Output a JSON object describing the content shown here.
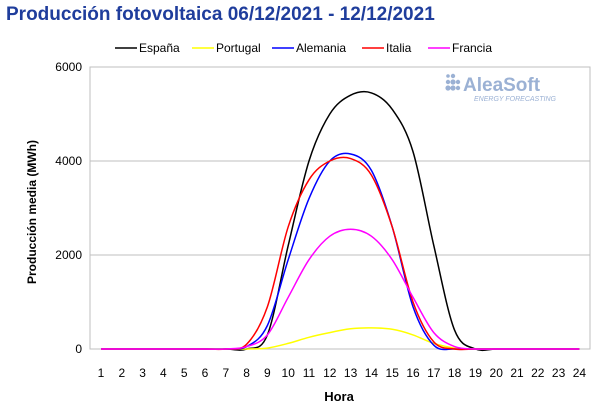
{
  "chart_data": {
    "type": "line",
    "title": "Producción fotovoltaica 06/12/2021 - 12/12/2021",
    "xlabel": "Hora",
    "ylabel": "Producción media (MWh)",
    "x": [
      1,
      2,
      3,
      4,
      5,
      6,
      7,
      8,
      9,
      10,
      11,
      12,
      13,
      14,
      15,
      16,
      17,
      18,
      19,
      20,
      21,
      22,
      23,
      24
    ],
    "xlim": [
      1,
      24
    ],
    "ylim": [
      0,
      6000
    ],
    "yticks": [
      "0",
      "2000",
      "4000",
      "6000"
    ],
    "grid": "horizontal",
    "legend_position": "top",
    "series": [
      {
        "name": "España",
        "color": "#000000",
        "values": [
          0,
          0,
          0,
          0,
          0,
          0,
          0,
          0,
          300,
          2200,
          4000,
          5000,
          5400,
          5450,
          5100,
          4200,
          2200,
          400,
          0,
          0,
          0,
          0,
          0,
          0
        ]
      },
      {
        "name": "Portugal",
        "color": "#ffff00",
        "values": [
          0,
          0,
          0,
          0,
          0,
          0,
          0,
          0,
          20,
          120,
          250,
          350,
          430,
          450,
          420,
          300,
          120,
          20,
          0,
          0,
          0,
          0,
          0,
          0
        ]
      },
      {
        "name": "Alemania",
        "color": "#0000ff",
        "values": [
          0,
          0,
          0,
          0,
          0,
          0,
          0,
          50,
          500,
          1900,
          3200,
          4000,
          4150,
          3800,
          2600,
          900,
          80,
          0,
          0,
          0,
          0,
          0,
          0,
          0
        ]
      },
      {
        "name": "Italia",
        "color": "#ff0000",
        "values": [
          0,
          0,
          0,
          0,
          0,
          0,
          0,
          100,
          900,
          2600,
          3600,
          4000,
          4050,
          3700,
          2600,
          1000,
          150,
          0,
          0,
          0,
          0,
          0,
          0,
          0
        ]
      },
      {
        "name": "Francia",
        "color": "#ff00ff",
        "values": [
          0,
          0,
          0,
          0,
          0,
          0,
          0,
          50,
          300,
          1100,
          1900,
          2400,
          2550,
          2400,
          1900,
          1100,
          350,
          50,
          0,
          0,
          0,
          0,
          0,
          0
        ]
      }
    ]
  },
  "watermark": {
    "brand": "AleaSoft",
    "tagline": "ENERGY FORECASTING"
  }
}
